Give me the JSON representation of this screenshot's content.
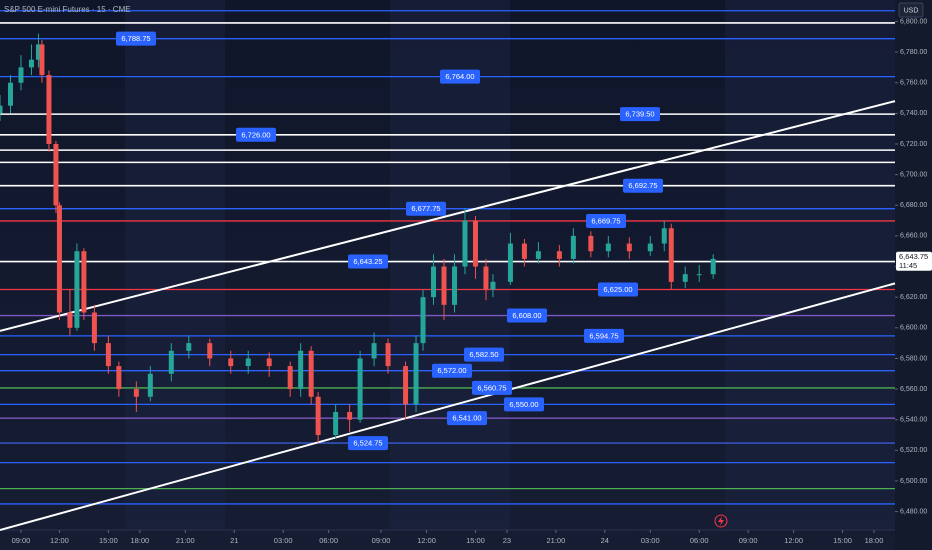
{
  "chart_data": {
    "type": "candlestick",
    "title": "S&P 500 E-mini Futures · 15 · CME",
    "currency": "USD",
    "up_color": "#26a69a",
    "down_color": "#ef5350",
    "xlim": [
      0,
      256
    ],
    "ylim": [
      6468,
      6814
    ],
    "yticks": [
      {
        "value": 6480,
        "label": "6,480.00"
      },
      {
        "value": 6500,
        "label": "6,500.00"
      },
      {
        "value": 6520,
        "label": "6,520.00"
      },
      {
        "value": 6540,
        "label": "6,540.00"
      },
      {
        "value": 6560,
        "label": "6,560.00"
      },
      {
        "value": 6580,
        "label": "6,580.00"
      },
      {
        "value": 6600,
        "label": "6,600.00"
      },
      {
        "value": 6620,
        "label": "6,620.00"
      },
      {
        "value": 6640,
        "label": "6,640.00"
      },
      {
        "value": 6660,
        "label": "6,660.00"
      },
      {
        "value": 6680,
        "label": "6,680.00"
      },
      {
        "value": 6700,
        "label": "6,700.00"
      },
      {
        "value": 6720,
        "label": "6,720.00"
      },
      {
        "value": 6740,
        "label": "6,740.00"
      },
      {
        "value": 6760,
        "label": "6,760.00"
      },
      {
        "value": 6780,
        "label": "6,780.00"
      },
      {
        "value": 6800,
        "label": "6,800.00"
      }
    ],
    "xticks": [
      {
        "value": 6,
        "label": "09:00"
      },
      {
        "value": 17,
        "label": "12:00"
      },
      {
        "value": 31,
        "label": "15:00"
      },
      {
        "value": 40,
        "label": "18:00"
      },
      {
        "value": 53,
        "label": "21:00"
      },
      {
        "value": 67,
        "label": "21"
      },
      {
        "value": 81,
        "label": "03:00"
      },
      {
        "value": 94,
        "label": "06:00"
      },
      {
        "value": 109,
        "label": "09:00"
      },
      {
        "value": 122,
        "label": "12:00"
      },
      {
        "value": 136,
        "label": "15:00"
      },
      {
        "value": 145,
        "label": "23"
      },
      {
        "value": 159,
        "label": "21:00"
      },
      {
        "value": 173,
        "label": "24"
      },
      {
        "value": 186,
        "label": "03:00"
      },
      {
        "value": 200,
        "label": "06:00"
      },
      {
        "value": 214,
        "label": "09:00"
      },
      {
        "value": 227,
        "label": "12:00"
      },
      {
        "value": 241,
        "label": "15:00"
      },
      {
        "value": 250,
        "label": "18:00"
      }
    ],
    "x": [
      0,
      3,
      6,
      9,
      11,
      12,
      14,
      16,
      17,
      20,
      22,
      24,
      27,
      31,
      34,
      39,
      43,
      49,
      54,
      60,
      66,
      71,
      77,
      83,
      86,
      89,
      91,
      96,
      100,
      103,
      107,
      111,
      116,
      119,
      121,
      124,
      127,
      130,
      133,
      136,
      139,
      141,
      146,
      150,
      154,
      160,
      164,
      169,
      174,
      180,
      186,
      190,
      192,
      196,
      200,
      204
    ],
    "open": [
      6740,
      6745,
      6760,
      6770,
      6775,
      6785,
      6765,
      6720,
      6680,
      6610,
      6600,
      6650,
      6610,
      6590,
      6575,
      6560,
      6555,
      6570,
      6585,
      6590,
      6580,
      6575,
      6580,
      6575,
      6560,
      6585,
      6555,
      6530,
      6545,
      6540,
      6580,
      6590,
      6575,
      6550,
      6590,
      6620,
      6640,
      6615,
      6640,
      6670,
      6640,
      6625,
      6630,
      6655,
      6645,
      6650,
      6645,
      6660,
      6650,
      6655,
      6650,
      6655,
      6665,
      6630,
      6635,
      6635
    ],
    "high": [
      6752,
      6765,
      6778,
      6785,
      6792,
      6788,
      6768,
      6722,
      6682,
      6625,
      6655,
      6652,
      6615,
      6595,
      6578,
      6565,
      6575,
      6590,
      6595,
      6593,
      6585,
      6585,
      6584,
      6578,
      6590,
      6588,
      6558,
      6550,
      6550,
      6585,
      6597,
      6593,
      6578,
      6595,
      6625,
      6648,
      6645,
      6648,
      6678,
      6673,
      6645,
      6635,
      6662,
      6658,
      6656,
      6654,
      6665,
      6663,
      6660,
      6659,
      6660,
      6670,
      6668,
      6640,
      6641,
      6648
    ],
    "low": [
      6735,
      6740,
      6755,
      6765,
      6770,
      6760,
      6715,
      6675,
      6605,
      6595,
      6598,
      6605,
      6585,
      6570,
      6555,
      6545,
      6552,
      6565,
      6580,
      6575,
      6570,
      6570,
      6568,
      6555,
      6555,
      6550,
      6525,
      6528,
      6532,
      6538,
      6575,
      6570,
      6540,
      6545,
      6585,
      6615,
      6605,
      6610,
      6635,
      6632,
      6618,
      6620,
      6628,
      6640,
      6642,
      6640,
      6642,
      6646,
      6646,
      6645,
      6647,
      6650,
      6625,
      6626,
      6630,
      6632
    ],
    "close": [
      6745,
      6760,
      6770,
      6775,
      6785,
      6765,
      6720,
      6680,
      6610,
      6600,
      6650,
      6610,
      6590,
      6575,
      6560,
      6555,
      6570,
      6585,
      6590,
      6580,
      6575,
      6580,
      6575,
      6560,
      6585,
      6555,
      6530,
      6545,
      6540,
      6580,
      6590,
      6575,
      6550,
      6590,
      6620,
      6640,
      6615,
      6640,
      6670,
      6640,
      6625,
      6630,
      6655,
      6645,
      6650,
      6645,
      6660,
      6650,
      6655,
      6650,
      6655,
      6665,
      6630,
      6635,
      6635,
      6645
    ],
    "levels": {
      "values": [
        6807,
        6799,
        6788.75,
        6764,
        6739.5,
        6726,
        6716,
        6708,
        6692.75,
        6677.75,
        6669.75,
        6643.25,
        6625,
        6608,
        6594.75,
        6582.5,
        6572,
        6560.75,
        6550,
        6541,
        6524.75,
        6512,
        6495,
        6485
      ],
      "value_labels": [
        null,
        null,
        "6,788.75",
        "6,764.00",
        "6,739.50",
        "6,726.00",
        null,
        null,
        "6,692.75",
        "6,677.75",
        "6,669.75",
        "6,643.25",
        "6,625.00",
        "6,608.00",
        "6,594.75",
        "6,582.50",
        "6,572.00",
        "6,560.75",
        "6,550.00",
        "6,541.00",
        "6,524.75",
        null,
        null,
        null
      ],
      "colors": [
        "#2962ff",
        "#ffffff",
        "#2962ff",
        "#2962ff",
        "#ffffff",
        "#ffffff",
        "#ffffff",
        "#ffffff",
        "#ffffff",
        "#2962ff",
        "#f23645",
        "#ffffff",
        "#f23645",
        "#7e57c2",
        "#2962ff",
        "#2962ff",
        "#2962ff",
        "#4caf50",
        "#2962ff",
        "#7e57c2",
        "#3a5bd9",
        "#2962ff",
        "#4caf50",
        "#2962ff"
      ]
    },
    "trendlines": [
      {
        "x": [
          0,
          256
        ],
        "y": [
          6598,
          6748
        ]
      },
      {
        "x": [
          0,
          256
        ],
        "y": [
          6468,
          6629
        ]
      }
    ],
    "last_price": {
      "value": 6643.75,
      "label": "6,643.75"
    },
    "countdown": "11:45"
  }
}
